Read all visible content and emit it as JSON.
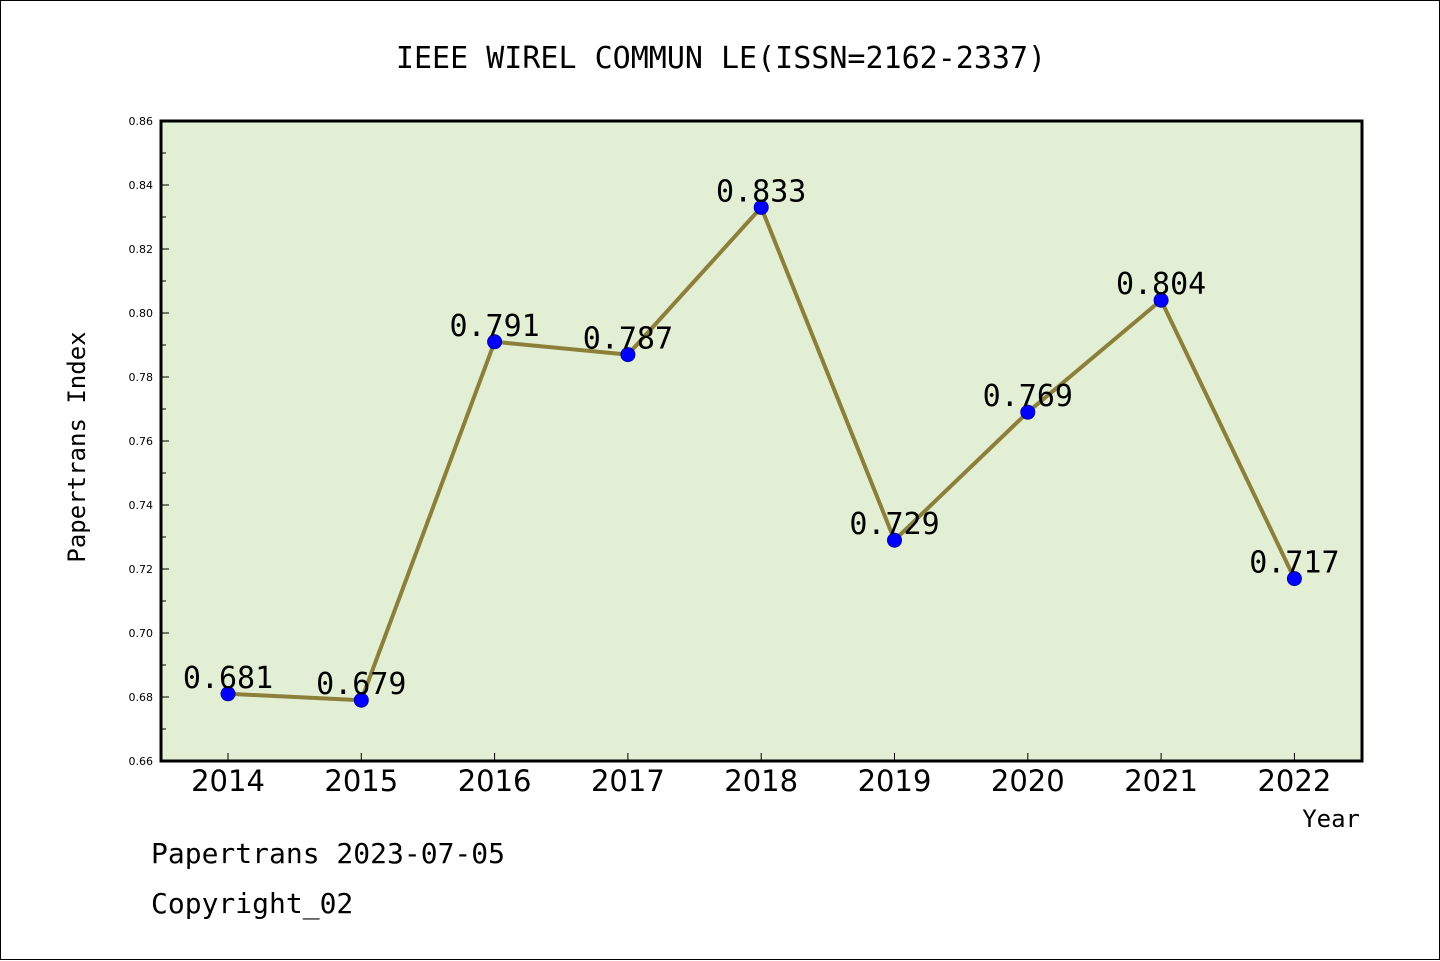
{
  "chart_data": {
    "type": "line",
    "title": "IEEE WIREL COMMUN LE(ISSN=2162-2337)",
    "xlabel": "Year",
    "ylabel": "Papertrans Index",
    "categories": [
      "2014",
      "2015",
      "2016",
      "2017",
      "2018",
      "2019",
      "2020",
      "2021",
      "2022"
    ],
    "values": [
      0.681,
      0.679,
      0.791,
      0.787,
      0.833,
      0.729,
      0.769,
      0.804,
      0.717
    ],
    "data_labels": [
      "0.681",
      "0.679",
      "0.791",
      "0.787",
      "0.833",
      "0.729",
      "0.769",
      "0.804",
      "0.717"
    ],
    "ylim": [
      0.66,
      0.86
    ],
    "yticks": [
      0.66,
      0.68,
      0.7,
      0.72,
      0.74,
      0.76,
      0.78,
      0.8,
      0.82,
      0.84,
      0.86
    ],
    "ytick_labels": [
      "0.66",
      "0.68",
      "0.70",
      "0.72",
      "0.74",
      "0.76",
      "0.78",
      "0.80",
      "0.82",
      "0.84",
      "0.86"
    ],
    "grid": false,
    "legend": "none",
    "colors": {
      "line": "#8c7f3a",
      "marker": "#0000ff",
      "plot_background": "#e2efd5",
      "axis": "#000000"
    }
  },
  "footer": {
    "date_line": "Papertrans 2023-07-05",
    "copyright": "Copyright_02"
  }
}
